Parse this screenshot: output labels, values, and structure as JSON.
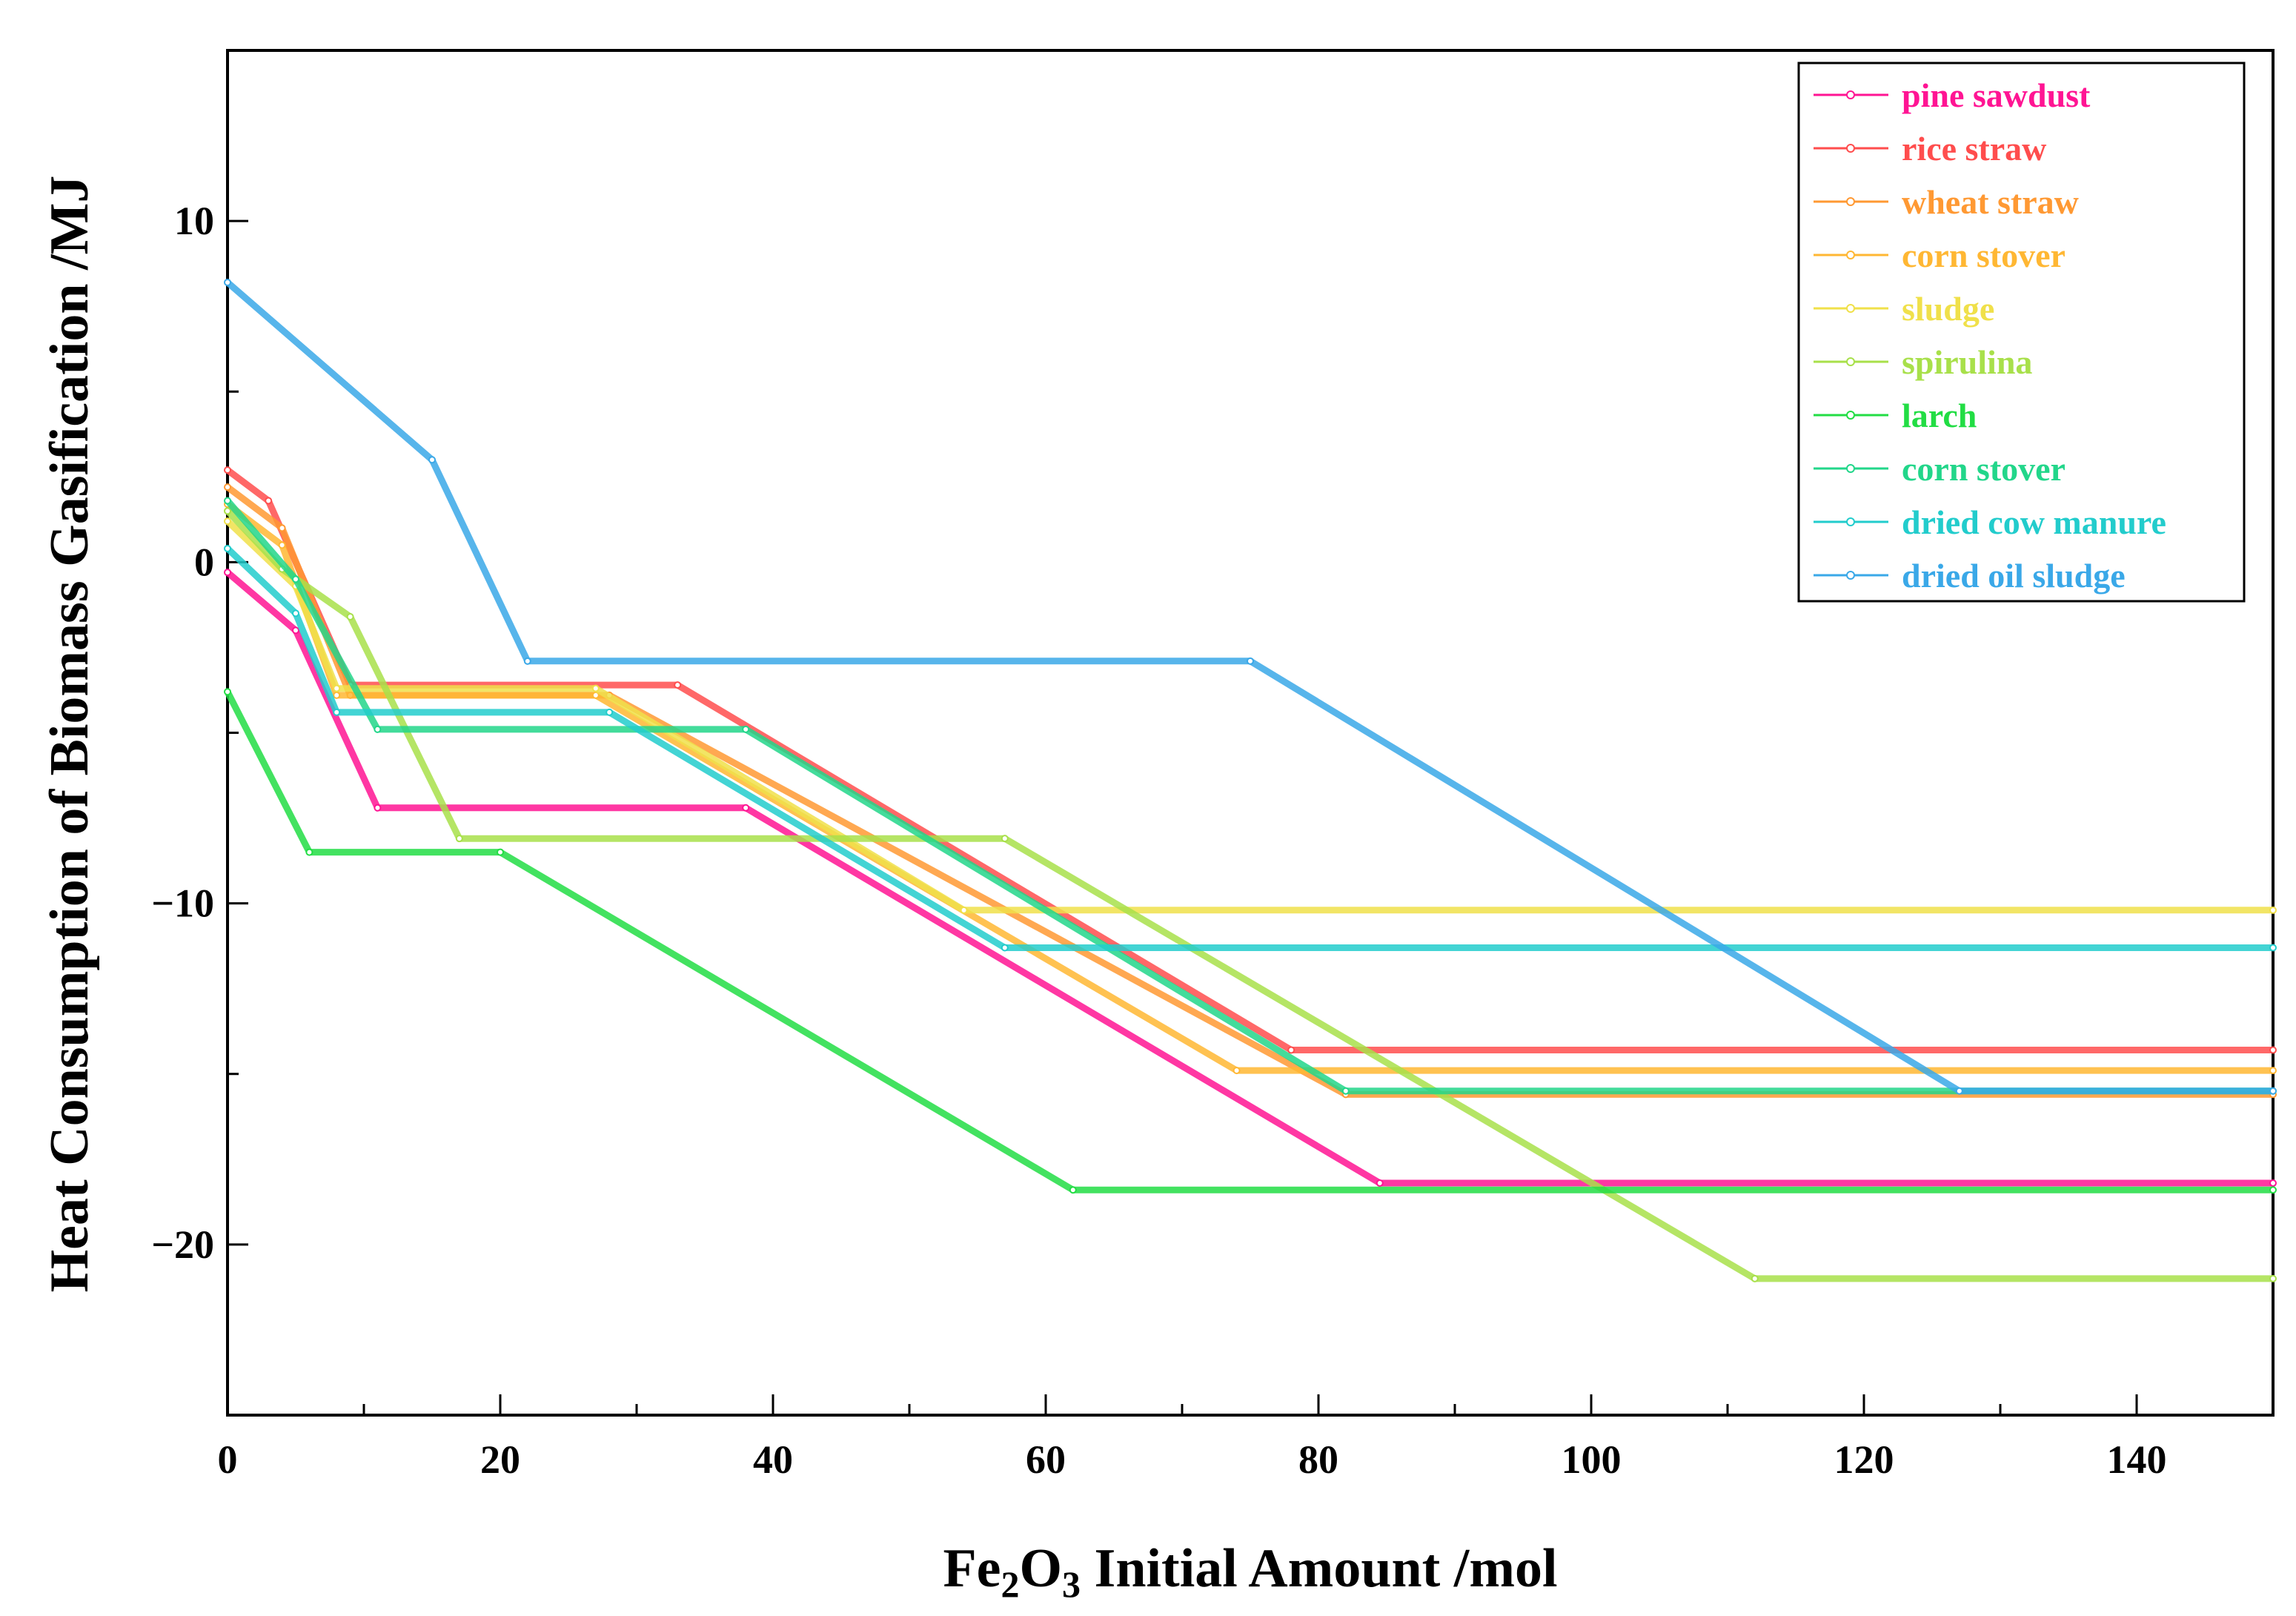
{
  "chart_data": {
    "type": "line",
    "title": "",
    "xlabel": {
      "base": "Fe",
      "sub1": "2",
      "mid": "O",
      "sub2": "3",
      "rest": " Initial Amount /mol"
    },
    "ylabel": "Heat Consumption of Biomass Gasification /MJ",
    "xlim": [
      0,
      150
    ],
    "ylim": [
      -25,
      15
    ],
    "x_ticks": [
      0,
      20,
      40,
      60,
      80,
      100,
      120,
      140
    ],
    "x_tick_labels": [
      "0",
      "20",
      "40",
      "60",
      "80",
      "100",
      "120",
      "140"
    ],
    "y_ticks": [
      10,
      0,
      -10,
      -20
    ],
    "y_tick_labels": [
      "10",
      "0",
      "−10",
      "−20"
    ],
    "x_minor_step": 10,
    "y_minor_step": 5,
    "legend_position": "top-right",
    "series": [
      {
        "name": "pine sawdust",
        "color": "#ff1493",
        "points": [
          [
            0,
            -0.3
          ],
          [
            5,
            -2
          ],
          [
            11,
            -7.2
          ],
          [
            38,
            -7.2
          ],
          [
            84.5,
            -18.2
          ],
          [
            150,
            -18.2
          ]
        ]
      },
      {
        "name": "rice straw",
        "color": "#ff4d4d",
        "points": [
          [
            0,
            2.7
          ],
          [
            3,
            1.8
          ],
          [
            9,
            -3.6
          ],
          [
            33,
            -3.6
          ],
          [
            78,
            -14.3
          ],
          [
            150,
            -14.3
          ]
        ]
      },
      {
        "name": "wheat straw",
        "color": "#ff9933",
        "points": [
          [
            0,
            2.2
          ],
          [
            4,
            1
          ],
          [
            9,
            -3.9
          ],
          [
            28,
            -3.9
          ],
          [
            82,
            -15.6
          ],
          [
            150,
            -15.6
          ]
        ]
      },
      {
        "name": "corn stover",
        "color": "#ffb733",
        "points": [
          [
            0,
            1.7
          ],
          [
            4,
            0.5
          ],
          [
            8,
            -3.9
          ],
          [
            27,
            -3.9
          ],
          [
            74,
            -14.9
          ],
          [
            150,
            -14.9
          ]
        ]
      },
      {
        "name": "sludge",
        "color": "#f0e04a",
        "points": [
          [
            0,
            1.2
          ],
          [
            5,
            -0.7
          ],
          [
            8,
            -3.7
          ],
          [
            27,
            -3.7
          ],
          [
            54,
            -10.2
          ],
          [
            150,
            -10.2
          ]
        ]
      },
      {
        "name": "spirulina",
        "color": "#a8e04a",
        "points": [
          [
            0,
            1.5
          ],
          [
            4,
            -0.2
          ],
          [
            9,
            -1.6
          ],
          [
            17,
            -8.1
          ],
          [
            57,
            -8.1
          ],
          [
            112,
            -21
          ],
          [
            150,
            -21
          ]
        ]
      },
      {
        "name": "larch",
        "color": "#22dd44",
        "points": [
          [
            0,
            -3.8
          ],
          [
            6,
            -8.5
          ],
          [
            20,
            -8.5
          ],
          [
            62,
            -18.4
          ],
          [
            150,
            -18.4
          ]
        ]
      },
      {
        "name": "corn stover",
        "color": "#22d68a",
        "points": [
          [
            0,
            1.8
          ],
          [
            5,
            -0.5
          ],
          [
            11,
            -4.9
          ],
          [
            38,
            -4.9
          ],
          [
            82,
            -15.5
          ],
          [
            150,
            -15.5
          ]
        ]
      },
      {
        "name": "dried cow manure",
        "color": "#22cccc",
        "points": [
          [
            0,
            0.4
          ],
          [
            5,
            -1.5
          ],
          [
            8,
            -4.4
          ],
          [
            28,
            -4.4
          ],
          [
            57,
            -11.3
          ],
          [
            150,
            -11.3
          ]
        ]
      },
      {
        "name": "dried oil sludge",
        "color": "#3aa8e8",
        "points": [
          [
            0,
            8.2
          ],
          [
            15,
            3
          ],
          [
            22,
            -2.9
          ],
          [
            75,
            -2.9
          ],
          [
            127,
            -15.5
          ],
          [
            150,
            -15.5
          ]
        ]
      }
    ]
  }
}
